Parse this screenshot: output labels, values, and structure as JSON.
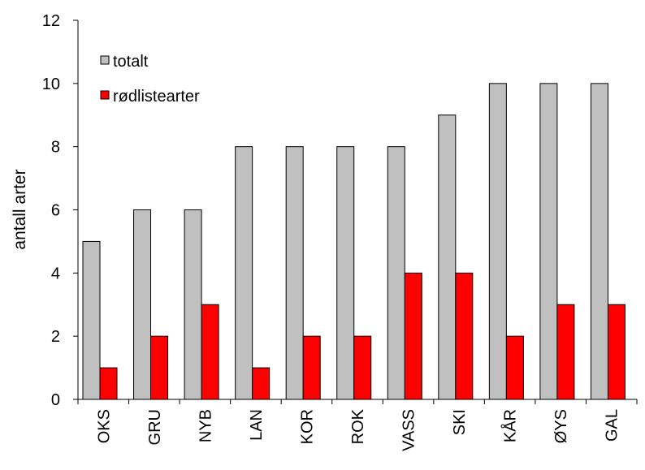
{
  "chart_data": {
    "type": "bar",
    "title": "",
    "xlabel": "",
    "ylabel": "antall arter",
    "ylim": [
      0,
      12
    ],
    "yticks": [
      0,
      2,
      4,
      6,
      8,
      10,
      12
    ],
    "grid": false,
    "legend_position": "top-left",
    "categories": [
      "OKS",
      "GRU",
      "NYB",
      "LAN",
      "KOR",
      "ROK",
      "VASS",
      "SKI",
      "KÅR",
      "ØYS",
      "GAL"
    ],
    "series": [
      {
        "name": "totalt",
        "color": "#c0c0c0",
        "values": [
          5,
          6,
          6,
          8,
          8,
          8,
          8,
          9,
          10,
          10,
          10
        ]
      },
      {
        "name": "rødlistearter",
        "color": "#ff0000",
        "values": [
          1,
          2,
          3,
          1,
          2,
          2,
          4,
          4,
          2,
          3,
          3
        ]
      }
    ]
  }
}
